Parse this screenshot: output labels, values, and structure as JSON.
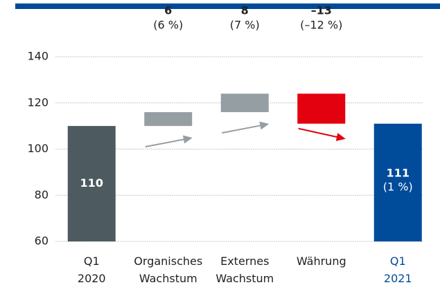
{
  "chart_data": {
    "type": "waterfall",
    "categories": [
      "Q1 2020",
      "Organisches Wachstum",
      "Externes Wachstum",
      "Währung",
      "Q1 2021"
    ],
    "values": [
      110,
      6,
      8,
      -13,
      111
    ],
    "value_labels": [
      "110",
      "6",
      "8",
      "–13",
      "111"
    ],
    "change_labels": [
      null,
      "(6 %)",
      "(7 %)",
      "(–12 %)",
      "(1 %)"
    ],
    "kinds": [
      "total",
      "delta",
      "delta",
      "delta",
      "total"
    ],
    "colors": [
      "#4d5a5f",
      "#959ea3",
      "#959ea3",
      "#e3000f",
      "#004b9a"
    ],
    "ylim": [
      60,
      140
    ],
    "yticks": [
      60,
      80,
      100,
      120,
      140
    ],
    "grid": true
  }
}
